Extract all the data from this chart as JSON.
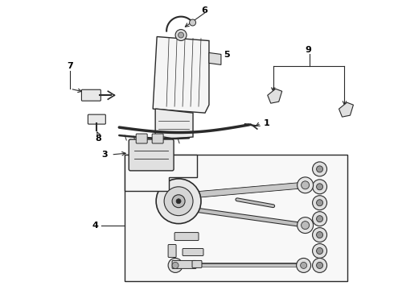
{
  "bg_color": "#ffffff",
  "lc": "#2a2a2a",
  "figsize": [
    4.9,
    3.6
  ],
  "dpi": 100,
  "label_fontsize": 8,
  "label_fontweight": "bold"
}
